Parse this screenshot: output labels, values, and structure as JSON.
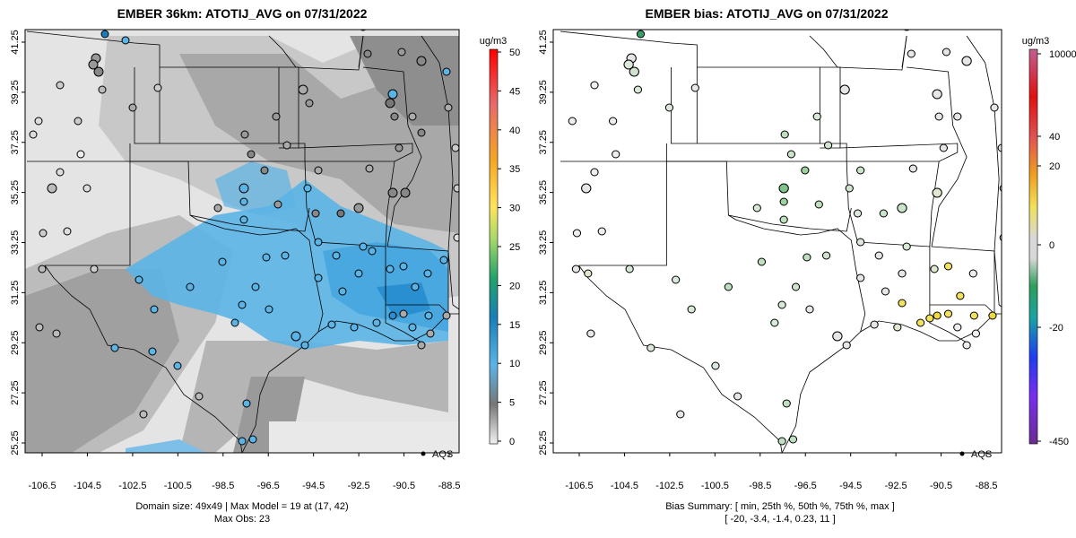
{
  "panels": [
    {
      "title": "EMBER 36km: ATOTIJ_AVG on 07/31/2022",
      "legend_label": "AQS",
      "footer_lines": [
        "Domain size: 49x49 | Max Model = 19 at (17, 42)",
        "Max Obs: 23"
      ],
      "colorbar": {
        "unit": "ug/m3",
        "ticks": [
          "50",
          "45",
          "40",
          "35",
          "30",
          "25",
          "20",
          "15",
          "10",
          "5",
          "0"
        ]
      }
    },
    {
      "title": "EMBER bias: ATOTIJ_AVG on 07/31/2022",
      "legend_label": "AQS",
      "footer_lines": [
        "Bias Summary: [ min, 25th %, 50th %, 75th %, max ]",
        "[ -20,   -3.4,   -1.4,   0.23,   11 ]"
      ],
      "colorbar": {
        "unit": "ug/m3",
        "ticks": [
          "10000",
          "40",
          "20",
          "0",
          "-20",
          "-450"
        ]
      }
    }
  ],
  "axes": {
    "x_ticks": [
      "-106.5",
      "-104.5",
      "-102.5",
      "-100.5",
      "-98.5",
      "-96.5",
      "-94.5",
      "-92.5",
      "-90.5",
      "-88.5"
    ],
    "y_ticks": [
      "41.25",
      "39.25",
      "37.25",
      "35.25",
      "33.25",
      "31.25",
      "29.25",
      "27.25",
      "25.25"
    ]
  },
  "colors": {
    "map_gray_light": "#e6e6e6",
    "map_gray_mid": "#b3b3b3",
    "map_gray_dark": "#8c8c8c",
    "model_blue": "#5ab4e6",
    "model_blue_dark": "#2a8fd0"
  }
}
